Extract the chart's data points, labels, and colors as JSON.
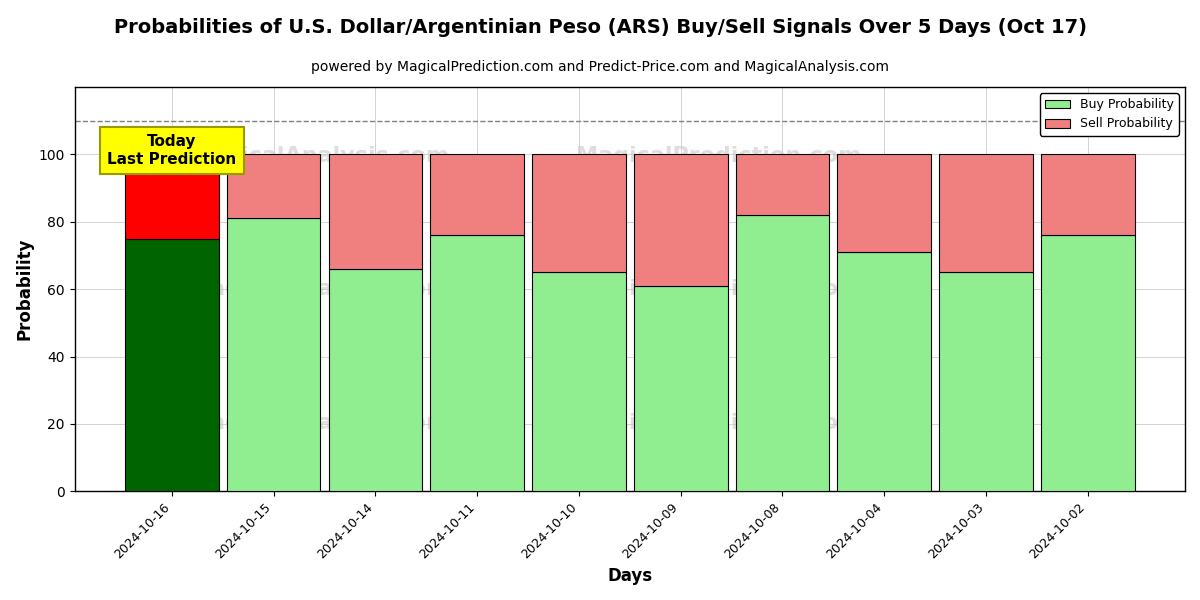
{
  "title": "Probabilities of U.S. Dollar/Argentinian Peso (ARS) Buy/Sell Signals Over 5 Days (Oct 17)",
  "subtitle": "powered by MagicalPrediction.com and Predict-Price.com and MagicalAnalysis.com",
  "xlabel": "Days",
  "ylabel": "Probability",
  "categories": [
    "2024-10-16",
    "2024-10-15",
    "2024-10-14",
    "2024-10-11",
    "2024-10-10",
    "2024-10-09",
    "2024-10-08",
    "2024-10-04",
    "2024-10-03",
    "2024-10-02"
  ],
  "buy_values": [
    75,
    81,
    66,
    76,
    65,
    61,
    82,
    71,
    65,
    76
  ],
  "sell_values": [
    25,
    19,
    34,
    24,
    35,
    39,
    18,
    29,
    35,
    24
  ],
  "today_index": 0,
  "buy_color_today": "#006400",
  "sell_color_today": "#ff0000",
  "buy_color_normal": "#90ee90",
  "sell_color_normal": "#f08080",
  "ylim": [
    0,
    120
  ],
  "yticks": [
    0,
    20,
    40,
    60,
    80,
    100
  ],
  "dashed_line_y": 110,
  "background_color": "#ffffff",
  "title_fontsize": 14,
  "subtitle_fontsize": 10,
  "legend_buy_label": "Buy Probability",
  "legend_sell_label": "Sell Probability",
  "bar_width": 0.92
}
